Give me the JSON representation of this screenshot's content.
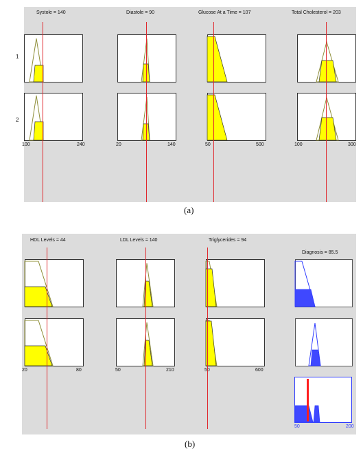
{
  "panel_a": {
    "caption": "(a)",
    "row_labels": [
      "1",
      "2"
    ],
    "inputs": [
      {
        "title": "Systole = 140",
        "range_min": "100",
        "range_max": "240"
      },
      {
        "title": "Diastole = 90",
        "range_min": "20",
        "range_max": "140"
      },
      {
        "title": "Glucose At a Time = 107",
        "range_min": "50",
        "range_max": "500"
      },
      {
        "title": "Total Cholesterol = 203",
        "range_min": "100",
        "range_max": "300"
      }
    ]
  },
  "panel_b": {
    "caption": "(b)",
    "inputs": [
      {
        "title": "HDL Levels = 44",
        "range_min": "20",
        "range_max": "80"
      },
      {
        "title": "LDL Levels = 140",
        "range_min": "50",
        "range_max": "210"
      },
      {
        "title": "Triglycerides = 94",
        "range_min": "50",
        "range_max": "600"
      }
    ],
    "output": {
      "title": "Diagnosis = 85.5",
      "range_min": "50",
      "range_max": "200"
    }
  },
  "colors": {
    "panel_bg": "#dcdcdc",
    "input_fill": "#ffff00",
    "input_line": "#8f8f3a",
    "output_fill": "#3f48ff",
    "output_line": "#2f3cff",
    "indicator": "#e0282e"
  }
}
